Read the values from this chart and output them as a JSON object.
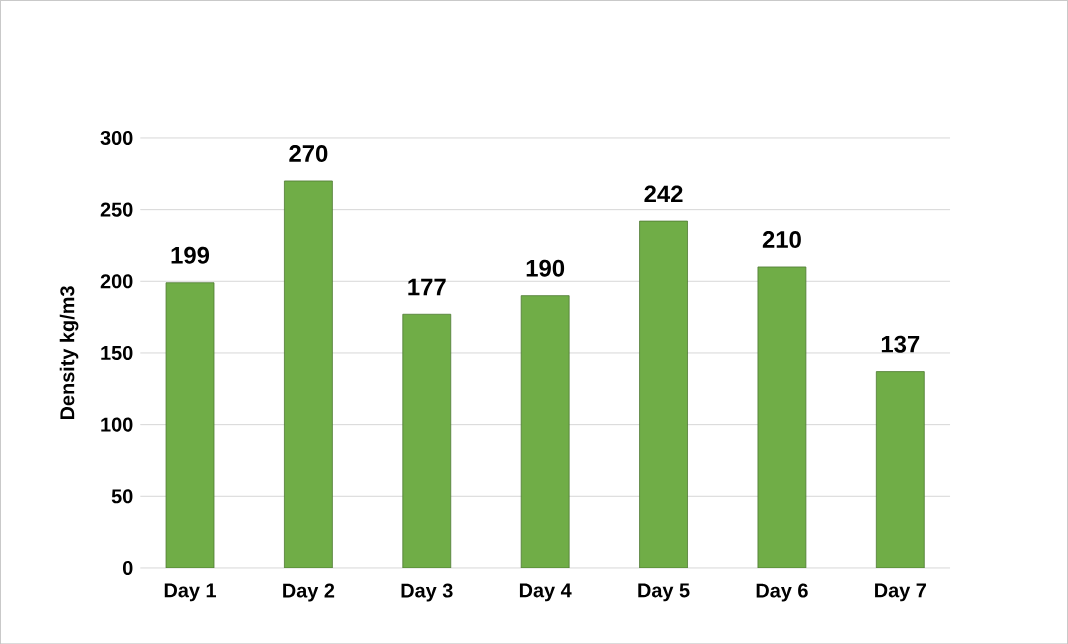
{
  "chart_data": {
    "type": "bar",
    "ylabel": "Density kg/m3",
    "categories": [
      "Day 1",
      "Day 2",
      "Day 3",
      "Day 4",
      "Day 5",
      "Day 6",
      "Day 7"
    ],
    "values": [
      199,
      270,
      177,
      190,
      242,
      210,
      137
    ],
    "color": "#70ad47",
    "ylim": [
      0,
      300
    ],
    "yticks": [
      0,
      50,
      100,
      150,
      200,
      250,
      300
    ],
    "grid": "y",
    "data_labels": true
  }
}
